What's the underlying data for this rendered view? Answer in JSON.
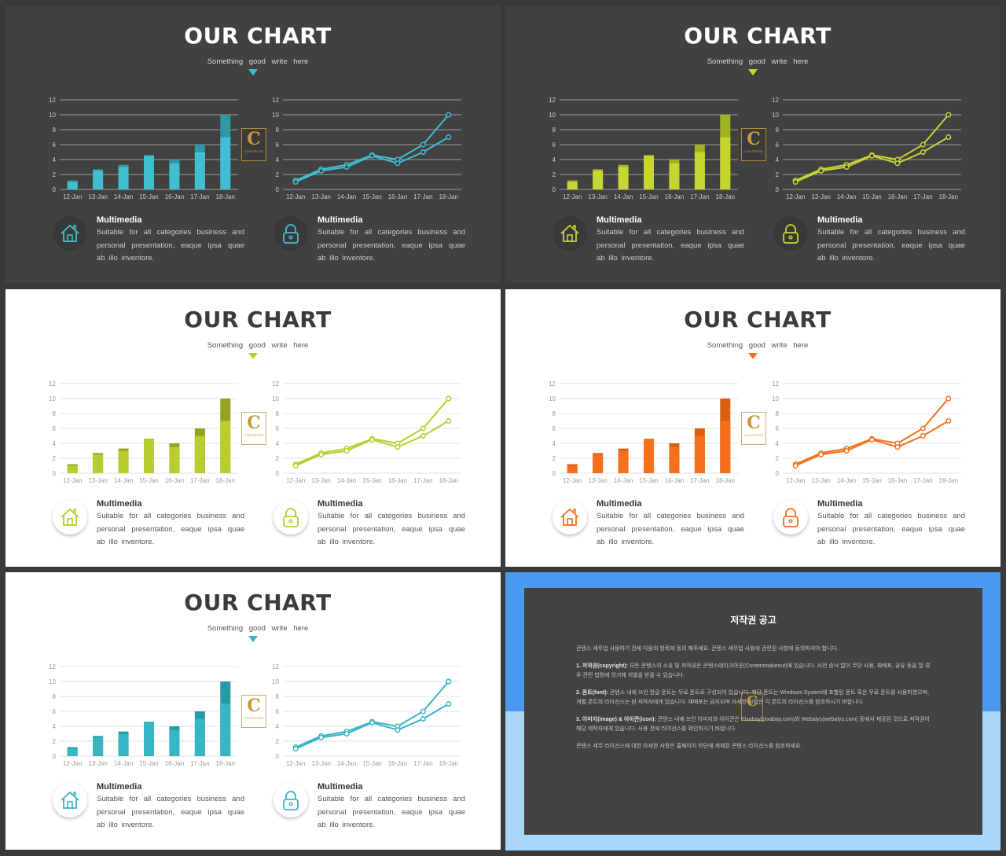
{
  "slide": {
    "title": "OUR CHART",
    "subtitle": "Something good write here",
    "logo": {
      "letter": "C",
      "text": "CONTENTS"
    },
    "features": [
      {
        "title": "Multimedia",
        "desc": "Suitable for all categories business and personal presentation, eaque ipsa quae ab illo inventore.",
        "icon": "house-icon"
      },
      {
        "title": "Multimedia",
        "desc": "Suitable for all categories business and personal presentation, eaque ipsa quae ab illo inventore.",
        "icon": "lock-icon"
      }
    ]
  },
  "themes": [
    {
      "bg": "dark",
      "accent": "#3fbfcf",
      "accent2": "#2f97a6"
    },
    {
      "bg": "dark",
      "accent": "#c6d531",
      "accent2": "#9fb221"
    },
    {
      "bg": "light",
      "accent": "#b8cd2f",
      "accent2": "#93a423"
    },
    {
      "bg": "light",
      "accent": "#f4701c",
      "accent2": "#d85e10"
    },
    {
      "bg": "light",
      "accent": "#36b6c4",
      "accent2": "#279aa7"
    }
  ],
  "chart_data": [
    {
      "type": "bar",
      "categories": [
        "12-Jan",
        "13-Jan",
        "14-Jan",
        "15-Jan",
        "16-Jan",
        "17-Jan",
        "18-Jan"
      ],
      "series": [
        {
          "values": [
            1,
            2.5,
            3,
            4.5,
            3.5,
            5,
            7
          ]
        },
        {
          "values": [
            1.2,
            2.7,
            3.3,
            4.6,
            4,
            6,
            10
          ]
        }
      ],
      "ylim": [
        0,
        12
      ],
      "yticks": [
        0,
        2,
        4,
        6,
        8,
        10,
        12
      ]
    },
    {
      "type": "line",
      "categories": [
        "12-Jan",
        "13-Jan",
        "14-Jan",
        "15-Jan",
        "16-Jan",
        "17-Jan",
        "18-Jan"
      ],
      "series": [
        {
          "values": [
            1.2,
            2.7,
            3.3,
            4.6,
            4,
            6,
            10
          ]
        },
        {
          "values": [
            1,
            2.5,
            3,
            4.5,
            3.5,
            5,
            7
          ]
        }
      ],
      "ylim": [
        0,
        12
      ],
      "yticks": [
        0,
        2,
        4,
        6,
        8,
        10,
        12
      ]
    }
  ],
  "notice": {
    "title": "저작권 공고",
    "logo_letter": "C",
    "paragraphs": [
      {
        "bold": "",
        "text": "콘텐스 세무업 사용하기 전에 다음의 항목에 동의 해주세요. 콘텐스 세무업 사용에 관련된 사항에 동의하셔야 합니다."
      },
      {
        "bold": "1. 저작권(copyright):",
        "text": "모든 콘텐스의 소유 및 저작권은 콘텐스테이크아웃(Contentstakeout)에 있습니다. 사전 승낙 없이 무단 사용, 재배포, 공유 등을 할 경우 관련 법령에 의거해 처벌을 받을 수 있습니다."
      },
      {
        "bold": "2. 폰트(font):",
        "text": "콘텐스 내에 쓰인 한글 폰트는 무료 폰트로 구성되어 있습니다. 해당 폰트는 Windows System에 포함된 폰트 혹은 무료 폰트를 사용하였으며, 개별 폰트의 라이선스는 원 저작자에게 있습니다. 재배포는 금지되며 자세한 사항은 각 폰트의 라이선스를 참조하시기 바랍니다."
      },
      {
        "bold": "3. 이미지(image) & 아이콘(icon):",
        "text": "콘텐스 내에 쓰인 이미지와 아이콘은 Pixabay(pixabay.com)와 Webalys(webalys.com) 등에서 제공된 것으로 저작권이 해당 제작자에게 있습니다. 사용 전에 라이선스를 확인하시기 바랍니다."
      },
      {
        "bold": "",
        "text": "콘텐스 세무 라이선스에 대한 자세한 사항은 홈페이지 하단에 게재된 콘텐스 라이선스를 참조하세요."
      }
    ]
  }
}
